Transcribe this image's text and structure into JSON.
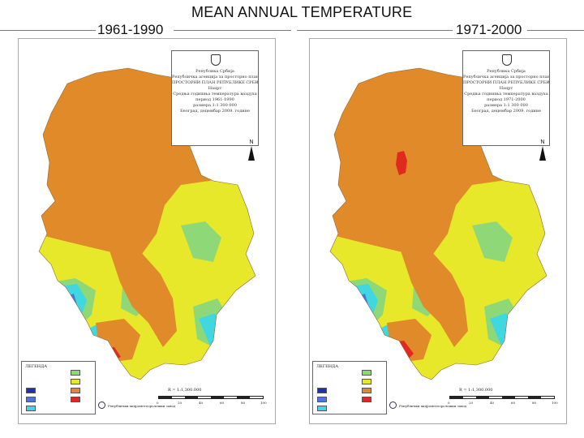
{
  "title": "MEAN ANNUAL TEMPERATURE",
  "colors": {
    "very_cold": "#1e2fb8",
    "cold": "#4a78d8",
    "cool": "#3fd8e0",
    "mild": "#8fd878",
    "moderate": "#e8e82a",
    "warm": "#e08a2a",
    "hot": "#e02a20",
    "frame": "#aaaaaa"
  },
  "panels": [
    {
      "period": "1961-1990",
      "legend_title": "ЛЕГЕНДА",
      "scale_text": "R = 1:1,300.000",
      "scale_ticks": [
        "0",
        "20",
        "40",
        "60",
        "80",
        "100"
      ],
      "scale_unit": "km",
      "hot_spots": [
        "south"
      ]
    },
    {
      "period": "1971-2000",
      "legend_title": "ЛЕГЕНДА",
      "scale_text": "R = 1:1,300.000",
      "scale_ticks": [
        "0",
        "20",
        "40",
        "60",
        "80",
        "100"
      ],
      "scale_unit": "km",
      "hot_spots": [
        "north",
        "south"
      ]
    }
  ]
}
